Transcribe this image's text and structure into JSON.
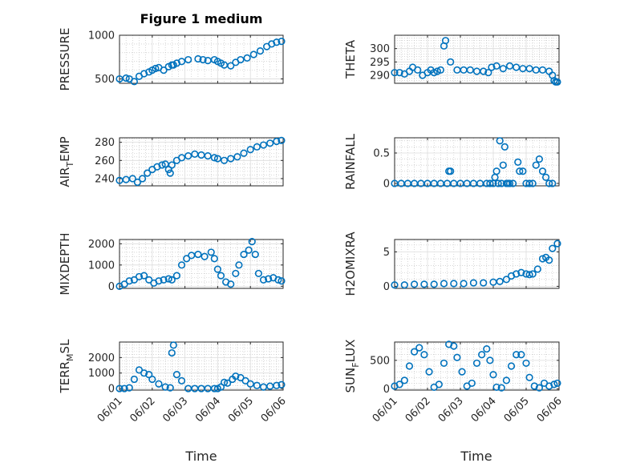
{
  "figure": {
    "title": "Figure 1 medium",
    "xlabel": "Time",
    "colors": {
      "marker": "#0072BD",
      "axis": "#262626",
      "grid": "#dcdcdc"
    }
  },
  "chart_data": [
    {
      "type": "scatter",
      "ylabel": "PRESSURE",
      "ylabel_sub": "",
      "xlim": [
        0,
        5
      ],
      "ylim": [
        450,
        1000
      ],
      "yticks": [
        500,
        1000
      ],
      "x": [
        0.0,
        0.2,
        0.3,
        0.45,
        0.6,
        0.75,
        0.9,
        1.0,
        1.1,
        1.2,
        1.35,
        1.5,
        1.6,
        1.65,
        1.75,
        1.9,
        2.1,
        2.4,
        2.55,
        2.7,
        2.9,
        3.0,
        3.1,
        3.2,
        3.4,
        3.55,
        3.7,
        3.9,
        4.1,
        4.3,
        4.5,
        4.65,
        4.8,
        4.95
      ],
      "y": [
        500,
        510,
        500,
        470,
        530,
        560,
        580,
        600,
        620,
        630,
        600,
        640,
        660,
        660,
        680,
        700,
        720,
        730,
        720,
        710,
        720,
        700,
        680,
        660,
        650,
        690,
        720,
        740,
        780,
        820,
        870,
        900,
        920,
        930
      ]
    },
    {
      "type": "scatter",
      "ylabel": "THETA",
      "ylabel_sub": "",
      "xlim": [
        0,
        5
      ],
      "ylim": [
        287,
        305
      ],
      "yticks": [
        290,
        295,
        300
      ],
      "x": [
        0.0,
        0.15,
        0.3,
        0.45,
        0.55,
        0.7,
        0.85,
        1.0,
        1.1,
        1.2,
        1.3,
        1.4,
        1.5,
        1.55,
        1.7,
        1.9,
        2.1,
        2.3,
        2.5,
        2.7,
        2.85,
        2.95,
        3.1,
        3.3,
        3.5,
        3.7,
        3.9,
        4.1,
        4.3,
        4.5,
        4.7,
        4.8,
        4.85,
        4.9,
        4.95
      ],
      "y": [
        291,
        291,
        290.5,
        291.5,
        293,
        292,
        290,
        291,
        292,
        291,
        291.5,
        292,
        301,
        303,
        295,
        292,
        292,
        292,
        291.5,
        291.5,
        291,
        293,
        293.5,
        292.5,
        293.5,
        293,
        292.5,
        292.5,
        292,
        292,
        291.5,
        290,
        288,
        287.5,
        287.5
      ]
    },
    {
      "type": "scatter",
      "ylabel": "AIR",
      "ylabel_sub": "T",
      "ylabel_rest": "EMP",
      "xlim": [
        0,
        5
      ],
      "ylim": [
        232,
        285
      ],
      "yticks": [
        240,
        260,
        280
      ],
      "x": [
        0.0,
        0.2,
        0.4,
        0.55,
        0.7,
        0.85,
        1.0,
        1.15,
        1.3,
        1.4,
        1.5,
        1.55,
        1.6,
        1.75,
        1.9,
        2.1,
        2.3,
        2.5,
        2.7,
        2.9,
        3.0,
        3.2,
        3.4,
        3.6,
        3.8,
        4.0,
        4.2,
        4.4,
        4.6,
        4.8,
        4.95
      ],
      "y": [
        238,
        239,
        240,
        236,
        240,
        246,
        250,
        253,
        255,
        256,
        250,
        246,
        255,
        260,
        263,
        265,
        267,
        266,
        265,
        263,
        262,
        260,
        262,
        264,
        268,
        272,
        275,
        277,
        279,
        281,
        282
      ]
    },
    {
      "type": "scatter",
      "ylabel": "RAINFALL",
      "ylabel_sub": "",
      "xlim": [
        0,
        5
      ],
      "ylim": [
        -0.04,
        0.75
      ],
      "yticks": [
        0,
        0.5
      ],
      "x": [
        0.0,
        0.2,
        0.4,
        0.6,
        0.8,
        1.0,
        1.2,
        1.4,
        1.6,
        1.65,
        1.7,
        1.8,
        2.0,
        2.2,
        2.4,
        2.6,
        2.8,
        2.9,
        3.0,
        3.05,
        3.1,
        3.15,
        3.2,
        3.25,
        3.3,
        3.35,
        3.4,
        3.45,
        3.5,
        3.6,
        3.75,
        3.8,
        3.9,
        4.0,
        4.1,
        4.2,
        4.3,
        4.4,
        4.5,
        4.6,
        4.7,
        4.8
      ],
      "y": [
        0,
        0,
        0,
        0,
        0,
        0,
        0,
        0,
        0,
        0.2,
        0.2,
        0,
        0,
        0,
        0,
        0,
        0,
        0,
        0,
        0.1,
        0.2,
        0,
        0.7,
        0,
        0.3,
        0.6,
        0,
        0,
        0,
        0,
        0.35,
        0.2,
        0.2,
        0,
        0,
        0,
        0.3,
        0.4,
        0.2,
        0.1,
        0,
        0
      ]
    },
    {
      "type": "scatter",
      "ylabel": "MIXDEPTH",
      "ylabel_sub": "",
      "xlim": [
        0,
        5
      ],
      "ylim": [
        -100,
        2200
      ],
      "yticks": [
        0,
        1000,
        2000
      ],
      "x": [
        0.0,
        0.15,
        0.3,
        0.45,
        0.6,
        0.75,
        0.9,
        1.05,
        1.2,
        1.35,
        1.5,
        1.6,
        1.75,
        1.9,
        2.05,
        2.2,
        2.4,
        2.6,
        2.8,
        2.9,
        3.0,
        3.1,
        3.25,
        3.4,
        3.55,
        3.65,
        3.8,
        3.95,
        4.05,
        4.15,
        4.25,
        4.4,
        4.55,
        4.7,
        4.85,
        4.95
      ],
      "y": [
        0,
        100,
        250,
        300,
        450,
        500,
        300,
        150,
        250,
        300,
        350,
        300,
        500,
        1000,
        1300,
        1450,
        1500,
        1400,
        1600,
        1300,
        800,
        500,
        200,
        100,
        600,
        1000,
        1500,
        1700,
        2100,
        1500,
        600,
        300,
        350,
        400,
        300,
        250
      ]
    },
    {
      "type": "scatter",
      "ylabel": "H2OMIXRA",
      "ylabel_sub": "",
      "xlim": [
        0,
        5
      ],
      "ylim": [
        -0.3,
        6.8
      ],
      "yticks": [
        0,
        5
      ],
      "x": [
        0.0,
        0.3,
        0.6,
        0.9,
        1.2,
        1.5,
        1.8,
        2.1,
        2.4,
        2.7,
        3.0,
        3.2,
        3.4,
        3.55,
        3.7,
        3.85,
        4.0,
        4.1,
        4.2,
        4.35,
        4.5,
        4.6,
        4.7,
        4.8,
        4.95
      ],
      "y": [
        0.2,
        0.2,
        0.3,
        0.3,
        0.3,
        0.4,
        0.4,
        0.4,
        0.5,
        0.5,
        0.6,
        0.7,
        1.0,
        1.5,
        1.8,
        2.0,
        1.8,
        1.7,
        1.8,
        2.5,
        4.0,
        4.2,
        3.8,
        5.5,
        6.2
      ]
    },
    {
      "type": "scatter",
      "ylabel": "TERR",
      "ylabel_sub": "M",
      "ylabel_rest": "SL",
      "xlim": [
        0,
        5
      ],
      "ylim": [
        -100,
        3000
      ],
      "yticks": [
        0,
        1000,
        2000
      ],
      "x": [
        0.0,
        0.15,
        0.3,
        0.45,
        0.6,
        0.75,
        0.9,
        1.0,
        1.2,
        1.4,
        1.55,
        1.6,
        1.65,
        1.75,
        1.9,
        2.1,
        2.3,
        2.5,
        2.7,
        2.9,
        3.0,
        3.1,
        3.2,
        3.3,
        3.45,
        3.55,
        3.7,
        3.85,
        4.0,
        4.2,
        4.4,
        4.6,
        4.8,
        4.95
      ],
      "y": [
        0,
        0,
        50,
        600,
        1200,
        1000,
        900,
        600,
        300,
        100,
        50,
        2300,
        2800,
        900,
        500,
        0,
        0,
        0,
        0,
        0,
        0,
        100,
        400,
        350,
        600,
        800,
        700,
        500,
        300,
        200,
        100,
        150,
        200,
        250
      ]
    },
    {
      "type": "scatter",
      "ylabel": "SUN",
      "ylabel_sub": "F",
      "ylabel_rest": "LUX",
      "xlim": [
        0,
        5
      ],
      "ylim": [
        -20,
        820
      ],
      "yticks": [
        0,
        500
      ],
      "x": [
        0.0,
        0.15,
        0.3,
        0.45,
        0.6,
        0.75,
        0.9,
        1.05,
        1.2,
        1.35,
        1.5,
        1.65,
        1.8,
        1.9,
        2.05,
        2.2,
        2.35,
        2.5,
        2.65,
        2.8,
        2.9,
        3.0,
        3.1,
        3.25,
        3.4,
        3.55,
        3.7,
        3.85,
        4.0,
        4.1,
        4.25,
        4.4,
        4.55,
        4.7,
        4.85,
        4.95
      ],
      "y": [
        50,
        80,
        150,
        400,
        650,
        720,
        600,
        300,
        30,
        80,
        450,
        780,
        750,
        550,
        300,
        50,
        100,
        450,
        600,
        700,
        500,
        250,
        30,
        20,
        150,
        400,
        600,
        600,
        450,
        200,
        50,
        20,
        100,
        50,
        80,
        100
      ]
    }
  ],
  "xticks": [
    "06/01",
    "06/02",
    "06/03",
    "06/04",
    "06/05",
    "06/06"
  ]
}
